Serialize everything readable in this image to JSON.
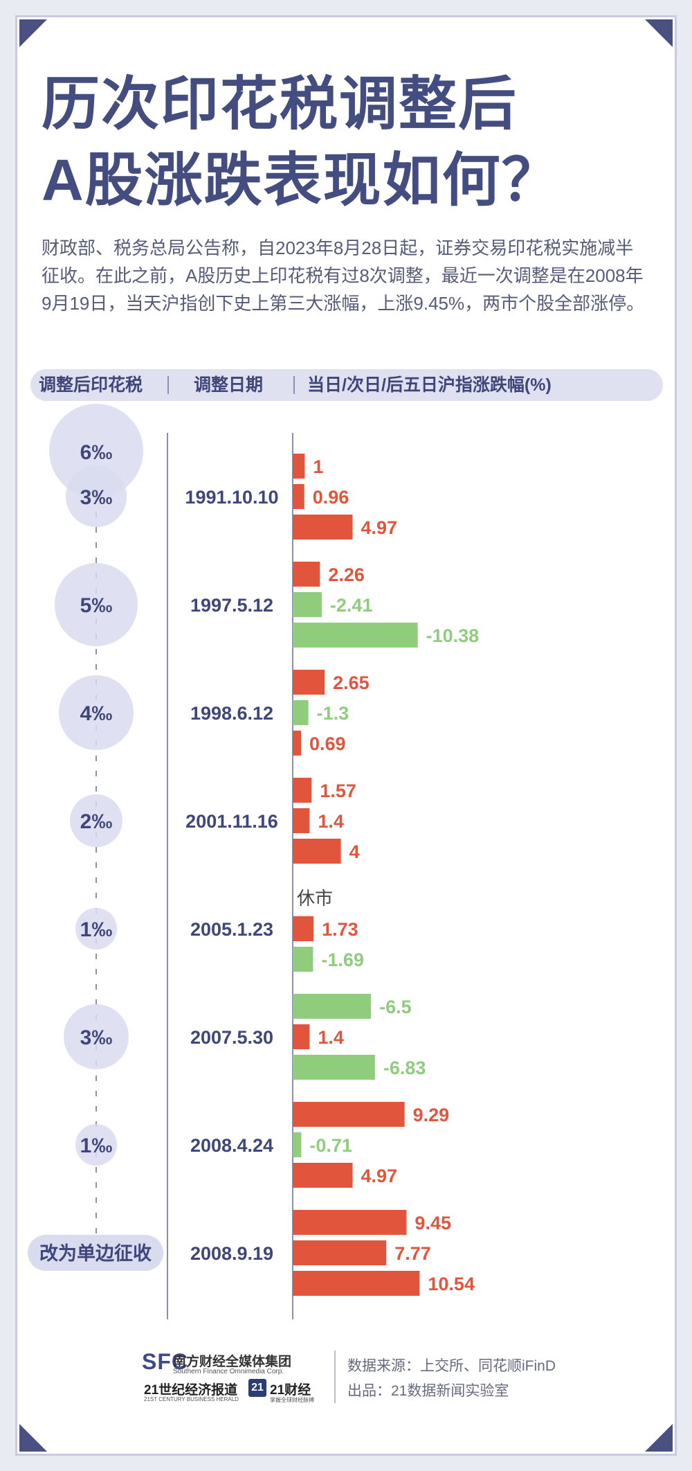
{
  "title": {
    "line1": "历次印花税调整后",
    "line2": "A股涨跌表现如何？"
  },
  "intro": "财政部、税务总局公告称，自2023年8月28日起，证券交易印花税实施减半征收。在此之前，A股历史上印花税有过8次调整，最近一次调整是在2008年9月19日，当天沪指创下史上第三大涨幅，上涨9.45%，两市个股全部涨停。",
  "header": {
    "col1": "调整后印花税",
    "col2": "调整日期",
    "col3": "当日/次日/后五日沪指涨跌幅(%)"
  },
  "colors": {
    "positive": "#e2553d",
    "negative": "#8fcd7d",
    "circle": "#d9dbee",
    "text_dark": "#3f467a"
  },
  "chart_data": {
    "type": "bar",
    "orientation": "horizontal",
    "series_labels_per_group": [
      "当日",
      "次日",
      "后五日"
    ],
    "initial_rate": "6‰",
    "groups": [
      {
        "date": "1991.10.10",
        "rate": "3‰",
        "values": [
          1,
          0.96,
          4.97
        ],
        "labels": [
          "1",
          "0.96",
          "4.97"
        ]
      },
      {
        "date": "1997.5.12",
        "rate": "5‰",
        "values": [
          2.26,
          -2.41,
          -10.38
        ],
        "labels": [
          "2.26",
          "-2.41",
          "-10.38"
        ]
      },
      {
        "date": "1998.6.12",
        "rate": "4‰",
        "values": [
          2.65,
          -1.3,
          0.69
        ],
        "labels": [
          "2.65",
          "-1.3",
          "0.69"
        ]
      },
      {
        "date": "2001.11.16",
        "rate": "2‰",
        "values": [
          1.57,
          1.4,
          4
        ],
        "labels": [
          "1.57",
          "1.4",
          "4"
        ]
      },
      {
        "date": "2005.1.23",
        "rate": "1‰",
        "values": [
          null,
          1.73,
          -1.69
        ],
        "labels": [
          "休市",
          "1.73",
          "-1.69"
        ]
      },
      {
        "date": "2007.5.30",
        "rate": "3‰",
        "values": [
          -6.5,
          1.4,
          -6.83
        ],
        "labels": [
          "-6.5",
          "1.4",
          "-6.83"
        ]
      },
      {
        "date": "2008.4.24",
        "rate": "1‰",
        "values": [
          9.29,
          -0.71,
          4.97
        ],
        "labels": [
          "9.29",
          "-0.71",
          "4.97"
        ]
      },
      {
        "date": "2008.9.19",
        "rate": "改为单边征收",
        "values": [
          9.45,
          7.77,
          10.54
        ],
        "labels": [
          "9.45",
          "7.77",
          "10.54"
        ]
      }
    ]
  },
  "footer": {
    "logo_sfc": "SFC",
    "logo_cn": "南方财经全媒体集团",
    "logo_en": "Southern Finance Omnimedia Corp.",
    "logo_21cbh": "21世纪经济报道",
    "logo_21cbh_en": "21ST CENTURY BUSINESS HERALD",
    "logo_21": "21",
    "logo_21cj": "21财经",
    "logo_21cj_sub": "掌握全球财经脉搏",
    "source": "数据来源：上交所、同花顺iFinD",
    "producer": "出品：21数据新闻实验室"
  }
}
